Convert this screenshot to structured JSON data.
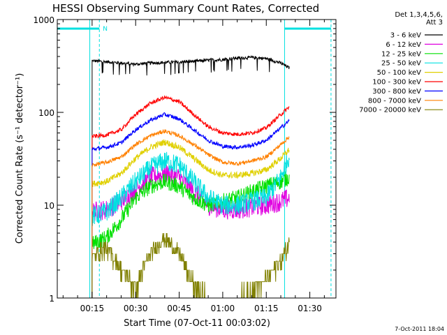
{
  "chart_data": {
    "type": "line",
    "title": "HESSI Observing Summary Count Rates, Corrected",
    "xlabel": "Start Time (07-Oct-11 00:03:02)",
    "ylabel": "Corrected Count Rate (s⁻¹ detector⁻¹)",
    "yscale": "log",
    "ylim": [
      1,
      1000
    ],
    "xlim_minutes": [
      3.0,
      99.0
    ],
    "x_ticks": [
      {
        "label": "00:15",
        "minute": 15
      },
      {
        "label": "00:30",
        "minute": 30
      },
      {
        "label": "00:45",
        "minute": 45
      },
      {
        "label": "01:00",
        "minute": 60
      },
      {
        "label": "01:15",
        "minute": 75
      },
      {
        "label": "01:30",
        "minute": 90
      }
    ],
    "y_ticks": [
      {
        "label": "1",
        "value": 1
      },
      {
        "label": "10",
        "value": 10
      },
      {
        "label": "100",
        "value": 100
      },
      {
        "label": "1000",
        "value": 1000
      }
    ],
    "legend_placement": "right-top",
    "legend_header": [
      "Det 1,3,4,5,6,",
      "Att 3"
    ],
    "timestamp": "7-Oct-2011 18:04",
    "night_markers": [
      {
        "start": 3.0,
        "end": 17.5,
        "label": "N"
      },
      {
        "start": 81.3,
        "end": 97.3,
        "label": ""
      }
    ],
    "series": [
      {
        "name": "3 - 6 keV",
        "color": "#000000",
        "x": [
          15,
          20,
          25,
          30,
          35,
          40,
          45,
          50,
          55,
          60,
          65,
          70,
          75,
          80,
          83
        ],
        "y": [
          360,
          350,
          340,
          330,
          340,
          345,
          350,
          355,
          365,
          370,
          385,
          390,
          380,
          340,
          300
        ]
      },
      {
        "name": "6 - 12 keV",
        "color": "#e000e0",
        "x": [
          15,
          20,
          25,
          30,
          35,
          40,
          45,
          50,
          55,
          60,
          65,
          70,
          75,
          80,
          83
        ],
        "y": [
          8.5,
          9,
          11,
          15,
          20,
          22,
          20,
          14,
          10,
          9,
          9,
          9.5,
          10,
          11,
          12
        ]
      },
      {
        "name": "12 - 25 keV",
        "color": "#00e000",
        "x": [
          15,
          20,
          25,
          30,
          35,
          40,
          45,
          50,
          55,
          60,
          65,
          70,
          75,
          80,
          83
        ],
        "y": [
          3.8,
          4.5,
          7,
          12,
          16,
          18,
          16,
          12,
          10,
          11,
          12,
          14,
          16,
          18,
          20
        ]
      },
      {
        "name": "25 - 50 keV",
        "color": "#00e0e0",
        "x": [
          15,
          20,
          25,
          30,
          35,
          40,
          45,
          50,
          55,
          60,
          65,
          70,
          75,
          80,
          83
        ],
        "y": [
          7.5,
          8.5,
          12,
          18,
          25,
          30,
          27,
          18,
          12,
          10,
          10,
          11,
          12,
          20,
          35
        ]
      },
      {
        "name": "50 - 100 keV",
        "color": "#e0d000",
        "x": [
          15,
          20,
          25,
          30,
          35,
          40,
          45,
          50,
          55,
          60,
          65,
          70,
          75,
          80,
          83
        ],
        "y": [
          17,
          18,
          22,
          32,
          42,
          48,
          42,
          32,
          24,
          21,
          21,
          22,
          24,
          32,
          40
        ]
      },
      {
        "name": "100 - 300 keV",
        "color": "#ff0000",
        "x": [
          15,
          20,
          25,
          30,
          35,
          40,
          45,
          50,
          55,
          60,
          65,
          70,
          75,
          80,
          83
        ],
        "y": [
          55,
          57,
          65,
          95,
          125,
          145,
          130,
          95,
          70,
          60,
          58,
          60,
          68,
          95,
          115
        ]
      },
      {
        "name": "300 - 800 keV",
        "color": "#0000ff",
        "x": [
          15,
          20,
          25,
          30,
          35,
          40,
          45,
          50,
          55,
          60,
          65,
          70,
          75,
          80,
          83
        ],
        "y": [
          40,
          42,
          47,
          65,
          82,
          95,
          85,
          65,
          50,
          43,
          42,
          44,
          50,
          68,
          82
        ]
      },
      {
        "name": "800 - 7000 keV",
        "color": "#ff8000",
        "x": [
          15,
          20,
          25,
          30,
          35,
          40,
          45,
          50,
          55,
          60,
          65,
          70,
          75,
          80,
          83
        ],
        "y": [
          27,
          29,
          33,
          45,
          56,
          63,
          56,
          45,
          35,
          29,
          28,
          30,
          33,
          45,
          55
        ]
      },
      {
        "name": "7000 - 20000 keV",
        "color": "#808000",
        "x": [
          15,
          20,
          25,
          30,
          35,
          40,
          45,
          50,
          55,
          60,
          65,
          70,
          75,
          80,
          83
        ],
        "y": [
          2.8,
          3.5,
          2.0,
          1.3,
          3.0,
          4.5,
          3.0,
          1.4,
          1.0,
          1.0,
          1.0,
          1.2,
          1.6,
          2.5,
          4.0
        ]
      }
    ]
  }
}
